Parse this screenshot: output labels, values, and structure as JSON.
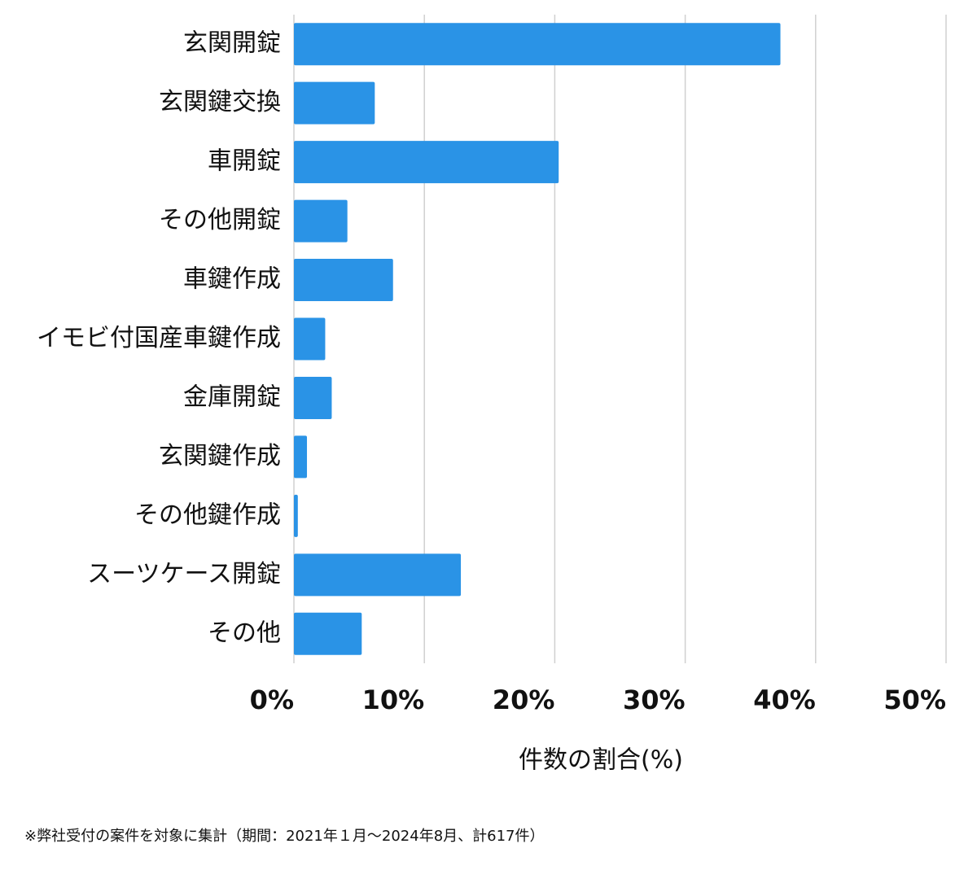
{
  "chart_data": {
    "type": "barh",
    "categories": [
      "玄関開錠",
      "玄関鍵交換",
      "車開錠",
      "その他開錠",
      "車鍵作成",
      "イモビ付国産車鍵作成",
      "金庫開錠",
      "玄関鍵作成",
      "その他鍵作成",
      "スーツケース開錠",
      "その他"
    ],
    "values": [
      37.3,
      6.2,
      20.3,
      4.1,
      7.6,
      2.4,
      2.9,
      1.0,
      0.3,
      12.8,
      5.2
    ],
    "color": "#2a93e6",
    "xlim": [
      0,
      50
    ],
    "xticks": [
      {
        "value": 0,
        "label": "0%"
      },
      {
        "value": 10,
        "label": "10%"
      },
      {
        "value": 20,
        "label": "20%"
      },
      {
        "value": 30,
        "label": "30%"
      },
      {
        "value": 40,
        "label": "40%"
      },
      {
        "value": 50,
        "label": "50%"
      }
    ],
    "x_label": "件数の割合(%)",
    "grid": true,
    "footnote": "※弊社受付の案件を対象に集計（期間：2021年１月～2024年8月、計617件）"
  }
}
